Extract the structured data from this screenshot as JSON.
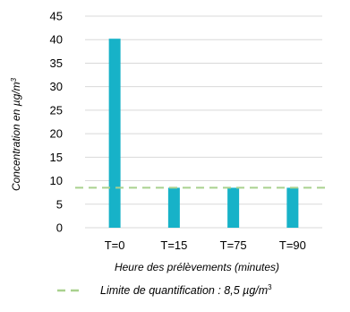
{
  "chart_data": {
    "type": "bar",
    "categories": [
      "T=0",
      "T=15",
      "T=75",
      "T=90"
    ],
    "values": [
      40.2,
      8.5,
      8.5,
      8.5
    ],
    "xlabel": "Heure des prélèvements (minutes)",
    "ylabel": "Concentration en µg/m",
    "ylabel_sup": "3",
    "ylim": [
      0,
      45
    ],
    "yticks": [
      0,
      5,
      10,
      15,
      20,
      25,
      30,
      35,
      40,
      45
    ],
    "grid": true,
    "bar_color": "#17b2c8",
    "reference_line": {
      "value": 8.5,
      "label": "Limite de quantification : 8,5 µg/m",
      "label_sup": "3",
      "color": "#a9d18e",
      "style": "dashed"
    },
    "legend_position": "bottom"
  }
}
